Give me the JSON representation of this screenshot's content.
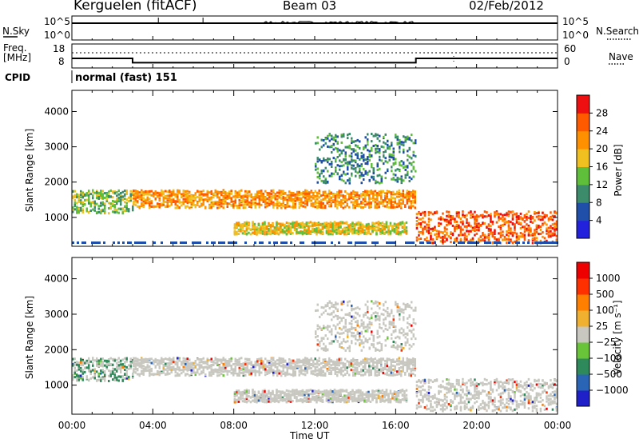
{
  "header": {
    "station": "Kerguelen (fitACF)",
    "beam": "Beam 03",
    "date": "02/Feb/2012"
  },
  "panels": {
    "nsky_label": "N.Sky",
    "nsearch_label": "N.Search",
    "freq_label_line1": "Freq.",
    "freq_label_line2": "[MHz]",
    "nave_label": "Nave",
    "cpid_label": "CPID",
    "cpid_value": "normal (fast) 151",
    "noise_ticks_left": [
      "10^5",
      "10^0"
    ],
    "noise_ticks_right": [
      "10^5",
      "10^0"
    ],
    "freq_ticks": [
      "18",
      "8"
    ],
    "nave_ticks": [
      "60",
      "0"
    ]
  },
  "chart_data": {
    "type": "heatmap",
    "xlabel": "Time UT",
    "x_ticks": [
      "00:00",
      "04:00",
      "08:00",
      "12:00",
      "16:00",
      "20:00",
      "00:00"
    ],
    "xlim_hours": [
      0,
      24
    ],
    "ylabel": "Slant Range [km]",
    "y_ticks": [
      1000,
      2000,
      3000,
      4000
    ],
    "ylim_km": [
      180,
      4600
    ],
    "power": {
      "label": "Power [dB]",
      "scale_ticks": [
        "28",
        "24",
        "20",
        "16",
        "12",
        "8",
        "4"
      ],
      "colors": [
        "#2222dd",
        "#1f4fa8",
        "#3c8c6c",
        "#5fbf3a",
        "#f0c020",
        "#ff9000",
        "#ff5a00",
        "#ee1010"
      ]
    },
    "velocity": {
      "label": "Velocity [m s⁻¹]",
      "scale_ticks": [
        "1000",
        "500",
        "100",
        "25",
        "−25",
        "−100",
        "−500",
        "−1000"
      ],
      "colors": [
        "#2020c8",
        "#2a64b4",
        "#2e8a5a",
        "#6ac43a",
        "#c8c8c0",
        "#f0b030",
        "#ff8000",
        "#ff3000",
        "#ee0000"
      ]
    },
    "frequency_MHz": [
      {
        "from_h": 0,
        "to_h": 3,
        "value": 13
      },
      {
        "from_h": 3,
        "to_h": 17,
        "value": 10
      },
      {
        "from_h": 17,
        "to_h": 24,
        "value": 13
      }
    ],
    "echo_bands": [
      {
        "from_h": 0.0,
        "to_h": 3.0,
        "range_km": [
          1150,
          1800
        ],
        "mean_power_dB": 12
      },
      {
        "from_h": 3.0,
        "to_h": 17.0,
        "range_km": [
          1300,
          1800
        ],
        "mean_power_dB": 20
      },
      {
        "from_h": 8.0,
        "to_h": 16.5,
        "range_km": [
          550,
          900
        ],
        "mean_power_dB": 16
      },
      {
        "from_h": 12.0,
        "to_h": 17.0,
        "range_km": [
          2000,
          3400
        ],
        "mean_power_dB": 8
      },
      {
        "from_h": 17.0,
        "to_h": 24.0,
        "range_km": [
          300,
          1200
        ],
        "mean_power_dB": 24
      }
    ]
  }
}
